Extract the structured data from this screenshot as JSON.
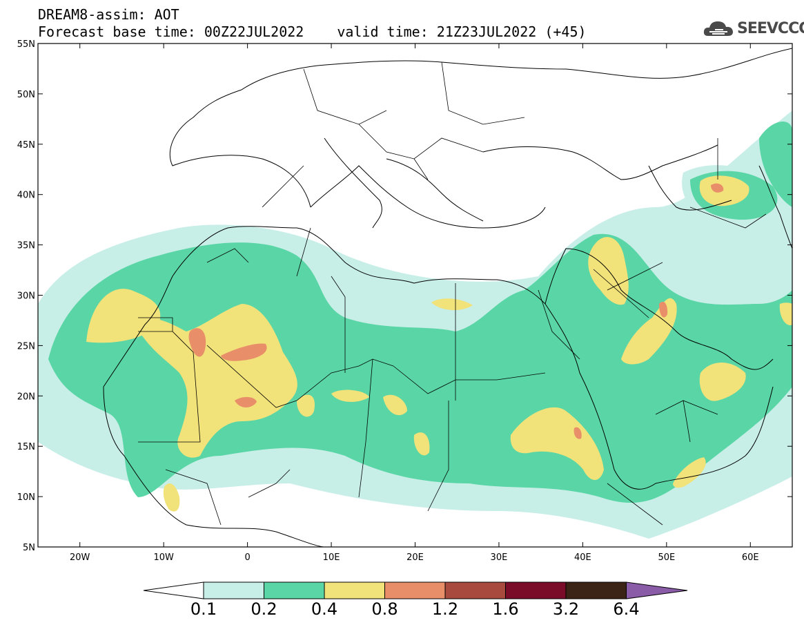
{
  "header": {
    "title": "DREAM8-assim: AOT",
    "base_time": "Forecast base time: 00Z22JUL2022",
    "valid_time": "valid time: 21Z23JUL2022 (+45)"
  },
  "logo": {
    "text": "SEEVCCC",
    "icon": "cloud-icon"
  },
  "map": {
    "extent": {
      "lon": [
        -25,
        65
      ],
      "lat": [
        5,
        55
      ]
    },
    "lat_ticks": [
      "5N",
      "10N",
      "15N",
      "20N",
      "25N",
      "30N",
      "35N",
      "40N",
      "45N",
      "50N",
      "55N"
    ],
    "lon_ticks": [
      "20W",
      "10W",
      "0",
      "10E",
      "20E",
      "30E",
      "40E",
      "50E",
      "60E"
    ]
  },
  "colorbar": {
    "labels": [
      "0.1",
      "0.2",
      "0.4",
      "0.8",
      "1.2",
      "1.6",
      "3.2",
      "6.4"
    ],
    "colors": [
      "#c8eee8",
      "#5ad6a6",
      "#f1e27a",
      "#e88f6a",
      "#a84a3e",
      "#7a0c2a",
      "#3b2416"
    ],
    "under_color": "#ffffff",
    "over_color": "#8a5ca8"
  }
}
